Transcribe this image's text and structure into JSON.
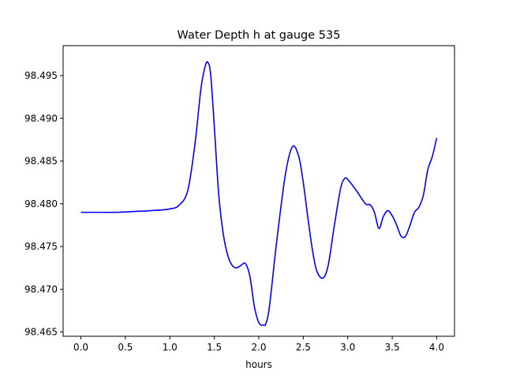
{
  "chart_data": {
    "type": "line",
    "title": "Water Depth h at gauge 535",
    "xlabel": "hours",
    "ylabel": "",
    "xlim": [
      -0.2,
      4.2
    ],
    "ylim": [
      98.4645,
      98.4985
    ],
    "xticks": [
      0.0,
      0.5,
      1.0,
      1.5,
      2.0,
      2.5,
      3.0,
      3.5,
      4.0
    ],
    "xtick_labels": [
      "0.0",
      "0.5",
      "1.0",
      "1.5",
      "2.0",
      "2.5",
      "3.0",
      "3.5",
      "4.0"
    ],
    "yticks": [
      98.465,
      98.47,
      98.475,
      98.48,
      98.485,
      98.49,
      98.495
    ],
    "ytick_labels": [
      "98.465",
      "98.470",
      "98.475",
      "98.480",
      "98.485",
      "98.490",
      "98.495"
    ],
    "grid": false,
    "series": [
      {
        "color": "#0000ff",
        "x": [
          0.0,
          0.2,
          0.4,
          0.6,
          0.8,
          1.0,
          1.1,
          1.2,
          1.28,
          1.35,
          1.4,
          1.43,
          1.46,
          1.5,
          1.55,
          1.6,
          1.65,
          1.7,
          1.75,
          1.8,
          1.85,
          1.9,
          1.95,
          2.0,
          2.05,
          2.08,
          2.12,
          2.2,
          2.3,
          2.38,
          2.45,
          2.5,
          2.55,
          2.6,
          2.65,
          2.72,
          2.78,
          2.85,
          2.92,
          2.97,
          3.02,
          3.1,
          3.2,
          3.25,
          3.3,
          3.35,
          3.4,
          3.45,
          3.5,
          3.55,
          3.6,
          3.65,
          3.7,
          3.75,
          3.8,
          3.85,
          3.9,
          3.95,
          4.0
        ],
        "y": [
          98.479,
          98.479,
          98.479,
          98.4791,
          98.4792,
          98.4794,
          98.4798,
          98.4815,
          98.4868,
          98.4935,
          98.4962,
          98.4965,
          98.495,
          98.489,
          98.481,
          98.4765,
          98.474,
          98.4728,
          98.4725,
          98.4728,
          98.473,
          98.4715,
          98.468,
          98.4661,
          98.4658,
          98.466,
          98.468,
          98.4755,
          98.4835,
          98.4867,
          98.4855,
          98.4825,
          98.4785,
          98.4748,
          98.4722,
          98.4713,
          98.4728,
          98.4775,
          98.4818,
          98.483,
          98.4826,
          98.4815,
          98.48,
          98.4799,
          98.479,
          98.4771,
          98.4785,
          98.4792,
          98.4786,
          98.4775,
          98.4762,
          98.4762,
          98.4775,
          98.479,
          98.4796,
          98.481,
          98.484,
          98.4855,
          98.4877
        ]
      }
    ]
  }
}
